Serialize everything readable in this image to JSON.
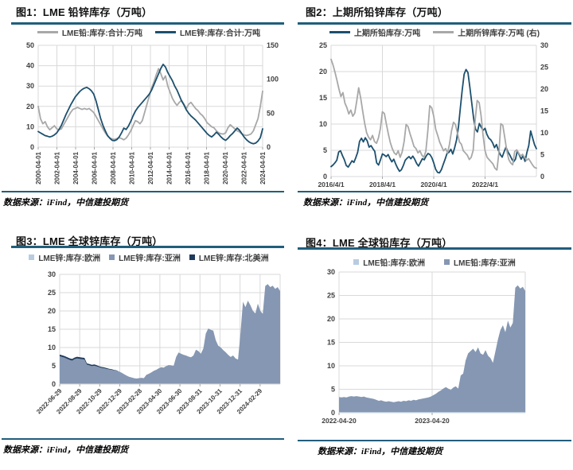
{
  "accent_color": "#215e7c",
  "source_note": "数据来源：iFind，中信建投期货",
  "chart_data": [
    {
      "id": "fig1",
      "title": "图1：LME 铅锌库存（万吨）",
      "type": "line",
      "source": "数据来源：iFind，中信建投期货",
      "left_axis": {
        "min": 0,
        "max": 50,
        "ticks": [
          0,
          10,
          20,
          30,
          40,
          50
        ]
      },
      "right_axis": {
        "min": 0,
        "max": 150,
        "ticks": [
          0,
          50,
          100,
          150
        ]
      },
      "x_ticks": [
        "2000-04-01",
        "2002-04-01",
        "2004-04-01",
        "2006-04-01",
        "2008-04-01",
        "2010-04-01",
        "2012-04-01",
        "2014-04-01",
        "2016-04-01",
        "2018-04-01",
        "2020-04-01",
        "2022-04-01",
        "2024-04-01"
      ],
      "grid": true,
      "legend_position": "top",
      "series": [
        {
          "name": "LME铅:库存:合计:万吨",
          "axis": "left",
          "color": "#a8a8a8",
          "values": [
            20,
            14,
            11.5,
            12.5,
            10,
            8.5,
            9.5,
            10.5,
            9,
            8.5,
            9,
            11,
            13,
            15,
            17,
            18.5,
            19,
            19.5,
            19,
            18.5,
            19,
            18.5,
            19,
            18,
            17,
            15,
            13,
            11,
            9,
            7,
            5.5,
            4.5,
            4,
            3.8,
            4.2,
            4.6,
            4.2,
            3.6,
            4.4,
            6,
            8,
            10.5,
            13,
            12.5,
            11.5,
            13,
            17,
            21,
            25,
            29,
            32,
            35.5,
            38.5,
            36,
            33,
            35,
            30,
            27,
            24,
            22,
            20.5,
            22,
            23,
            21,
            19,
            21,
            22,
            20.5,
            19,
            18,
            16.5,
            15.5,
            14,
            12,
            11,
            10,
            9.5,
            8,
            7,
            6.6,
            6.4,
            7,
            9.5,
            11,
            10,
            9,
            8,
            7.5,
            6.5,
            6,
            5.7,
            6,
            6.5,
            8,
            11,
            14,
            20,
            27.5
          ]
        },
        {
          "name": "LME锌:库存:合计:万吨",
          "axis": "right",
          "color": "#1c506e",
          "values": [
            23,
            21,
            19,
            17,
            16,
            15,
            16,
            18,
            21,
            26,
            32,
            40,
            48,
            55,
            62,
            68,
            74,
            78,
            82,
            85,
            87,
            88,
            86,
            83,
            78,
            68,
            55,
            42,
            32,
            24,
            17,
            13,
            10,
            9.5,
            11,
            15,
            21,
            28,
            26,
            31,
            38,
            46,
            53,
            58,
            62,
            66,
            70,
            74,
            78,
            84,
            92,
            100,
            108,
            116,
            122,
            118,
            110,
            104,
            98,
            90,
            84,
            76,
            68,
            62,
            55,
            50,
            46,
            43,
            40,
            36,
            32,
            28,
            24,
            20,
            17,
            15,
            18,
            22,
            19,
            15,
            12,
            10,
            13,
            17,
            20,
            24,
            28,
            25,
            20,
            15,
            11,
            8,
            6,
            5,
            6,
            9,
            14,
            27
          ]
        }
      ]
    },
    {
      "id": "fig2",
      "title": "图2：上期所铅锌库存（万吨）",
      "type": "line",
      "source": "数据来源：iFind，中信建投期货",
      "left_axis": {
        "min": 0,
        "max": 25,
        "ticks": [
          0,
          5,
          10,
          15,
          20,
          25
        ]
      },
      "right_axis": {
        "min": 0,
        "max": 30,
        "ticks": [
          0,
          5,
          10,
          15,
          20,
          25,
          30
        ]
      },
      "x_ticks": [
        "2016/4/1",
        "2018/4/1",
        "2020/4/1",
        "2022/4/1"
      ],
      "grid": true,
      "legend_position": "top",
      "series": [
        {
          "name": "上期所铅库存:万吨",
          "axis": "left",
          "color": "#1c506e",
          "values": [
            1.9,
            2.2,
            2.6,
            3.1,
            4.7,
            4.9,
            4.0,
            3.2,
            2.1,
            1.8,
            2.4,
            3.0,
            2.7,
            3.6,
            4.6,
            6.7,
            7.3,
            6.6,
            7.4,
            6.8,
            5.6,
            5.9,
            5.3,
            4.8,
            2.6,
            2.2,
            3.2,
            4.3,
            4.1,
            3.8,
            4.2,
            3.4,
            2.8,
            3.3,
            2.4,
            1.6,
            1.0,
            1.3,
            2.1,
            3.1,
            3.5,
            3.8,
            3.4,
            3.9,
            3.3,
            2.5,
            2.0,
            2.7,
            3.4,
            3.2,
            3.9,
            4.4,
            4.2,
            3.6,
            2.6,
            1.4,
            0.8,
            0.7,
            1.3,
            2.3,
            3.3,
            4.4,
            4.6,
            5.2,
            4.3,
            5.5,
            7.0,
            9.5,
            13.0,
            16.5,
            19.5,
            20.4,
            19.8,
            17.0,
            14.0,
            11.0,
            9.0,
            8.5,
            10.1,
            9.4,
            8.8,
            9.2,
            8.0,
            7.3,
            7.0,
            6.4,
            5.5,
            6.1,
            5.0,
            4.2,
            3.7,
            4.7,
            5.6,
            4.7,
            4.1,
            3.4,
            2.8,
            3.3,
            4.9,
            4.1,
            3.3,
            4.0,
            2.9,
            4.6,
            5.9,
            8.7,
            7.4,
            6.1,
            5.3
          ]
        },
        {
          "name": "上期所锌库存:万吨 (右)",
          "axis": "right",
          "color": "#a8a8a8",
          "values": [
            26.8,
            25.5,
            23.8,
            22.0,
            20.0,
            18.3,
            19.2,
            16.8,
            15.8,
            14.3,
            15.2,
            13.8,
            14.5,
            17.3,
            20.3,
            18.0,
            15.0,
            12.2,
            10.0,
            9.0,
            8.4,
            9.4,
            8.0,
            7.6,
            8.8,
            11.0,
            14.8,
            14.4,
            12.0,
            9.8,
            7.8,
            6.4,
            5.4,
            5.0,
            5.9,
            4.4,
            5.6,
            8.0,
            11.9,
            11.4,
            9.8,
            8.4,
            6.9,
            6.4,
            5.4,
            5.9,
            4.9,
            4.4,
            5.8,
            10.5,
            16.2,
            15.7,
            13.8,
            10.8,
            9.4,
            7.9,
            6.9,
            5.9,
            6.4,
            5.4,
            7.4,
            10.4,
            12.4,
            11.9,
            9.9,
            7.9,
            7.4,
            5.9,
            5.4,
            4.9,
            3.9,
            4.4,
            6.0,
            13.0,
            17.4,
            16.9,
            13.9,
            9.4,
            5.9,
            4.4,
            3.9,
            3.4,
            2.9,
            1.9,
            1.5,
            5.4,
            12.1,
            11.7,
            8.9,
            5.9,
            3.9,
            3.1,
            2.7,
            5.7,
            6.1,
            5.4,
            4.7,
            5.1,
            4.4,
            3.7,
            4.1,
            3.4,
            2.7,
            2.1,
            1.9
          ]
        }
      ]
    },
    {
      "id": "fig3",
      "title": "图3：LME 全球锌库存（万吨）",
      "type": "area",
      "source": "数据来源：iFind，中信建投期货",
      "left_axis": {
        "min": 0,
        "max": 30,
        "ticks": [
          0,
          5,
          10,
          15,
          20,
          25,
          30
        ]
      },
      "x_ticks": [
        "2022-06-29",
        "2022-08-29",
        "2022-10-29",
        "2022-12-29",
        "2023-02-28",
        "2023-04-30",
        "2023-06-30",
        "2023-08-31",
        "2023-10-31",
        "2023-12-31",
        "2024-02-29"
      ],
      "grid": true,
      "legend_position": "top",
      "series": [
        {
          "name": "LME锌:库存:欧洲",
          "color": "#b8cce0",
          "values": [
            0.12,
            0.12,
            0.12,
            0.12,
            0.12,
            0.12,
            0.12,
            0.12,
            0.12,
            0.12,
            0.12,
            0.12,
            0.12,
            0.12,
            0.12,
            0.12,
            0.12,
            0.12,
            0.12,
            0.12,
            0.12,
            0.12,
            0.12,
            0.12,
            0.12,
            0.12,
            0.12,
            0.12,
            0.12,
            0.12,
            0.12,
            0.12,
            0.12,
            0.12,
            0.12,
            0.12,
            0.12,
            0.12,
            0.12,
            0.12,
            0.12,
            0.12,
            0.12,
            0.12,
            0.12,
            0.12,
            0.12,
            0.12,
            0.12,
            0.12,
            0.12,
            0.12,
            0.12,
            0.12,
            0.12,
            0.12,
            0.12,
            0.12,
            0.12,
            0.12,
            0.12,
            0.12,
            0.12,
            0.12,
            0.12,
            0.12,
            0.12,
            0.12,
            0.12,
            0.12,
            0.12,
            0.12,
            0.12,
            0.12,
            0.12,
            0.12,
            0.12,
            0.12,
            0.12,
            0.12,
            0.12,
            0.12,
            0.12,
            0.12,
            0.12,
            0.12,
            0.12,
            0.12,
            0.12,
            0.12
          ]
        },
        {
          "name": "LME锌:库存:亚洲",
          "color": "#8597b2",
          "values": [
            7.5,
            7.3,
            7.1,
            6.8,
            6.5,
            6.3,
            6.7,
            6.9,
            6.8,
            6.7,
            6.6,
            5.2,
            5.0,
            4.8,
            4.9,
            4.7,
            4.5,
            4.3,
            4.2,
            4.0,
            3.9,
            3.8,
            3.6,
            3.5,
            3.3,
            3.0,
            2.6,
            2.2,
            1.9,
            1.7,
            1.5,
            1.4,
            1.5,
            1.6,
            1.5,
            2.4,
            2.7,
            3.1,
            3.5,
            3.8,
            4.2,
            4.5,
            4.4,
            4.8,
            5.1,
            5.0,
            4.9,
            7.3,
            8.5,
            8.2,
            7.9,
            7.7,
            7.4,
            7.2,
            7.7,
            9.3,
            8.9,
            8.2,
            9.6,
            13.7,
            15.1,
            14.7,
            14.5,
            11.9,
            10.4,
            9.9,
            9.2,
            8.6,
            7.9,
            7.3,
            7.7,
            6.9,
            6.6,
            13.9,
            22.4,
            20.9,
            22.7,
            21.4,
            19.9,
            19.2,
            21.9,
            19.9,
            19.1,
            26.7,
            27.2,
            26.4,
            26.8,
            25.9,
            26.4,
            25.3
          ]
        },
        {
          "name": "LME锌:库存:北美洲",
          "color": "#1f3b5d",
          "values": [
            0.45,
            0.45,
            0.45,
            0.45,
            0.45,
            0.45,
            0.45,
            0.45,
            0.45,
            0.45,
            0.45,
            0.35,
            0.35,
            0.35,
            0.35,
            0.35,
            0.25,
            0.25,
            0.25,
            0.25,
            0.15,
            0.15,
            0.15,
            0.15,
            0,
            0,
            0,
            0,
            0,
            0,
            0,
            0,
            0,
            0,
            0,
            0,
            0,
            0,
            0,
            0,
            0,
            0,
            0,
            0,
            0,
            0,
            0,
            0,
            0,
            0,
            0,
            0,
            0,
            0,
            0,
            0,
            0,
            0,
            0,
            0,
            0,
            0,
            0,
            0,
            0,
            0,
            0,
            0,
            0,
            0,
            0,
            0,
            0,
            0,
            0,
            0,
            0,
            0,
            0,
            0,
            0,
            0,
            0,
            0,
            0,
            0,
            0,
            0,
            0,
            0
          ]
        }
      ]
    },
    {
      "id": "fig4",
      "title": "图4：LME 全球铅库存（万吨）",
      "type": "area",
      "source": "数据来源：iFind，中信建投期货",
      "left_axis": {
        "min": 0,
        "max": 30,
        "ticks": [
          0,
          5,
          10,
          15,
          20,
          25,
          30
        ]
      },
      "x_ticks": [
        "2022-04-20",
        "2023-04-20"
      ],
      "grid": true,
      "legend_position": "top",
      "series": [
        {
          "name": "LME铅:库存:欧洲",
          "color": "#b8cce0",
          "values": [
            0.15,
            0.15,
            0.15,
            0.15,
            0.15,
            0.15,
            0.15,
            0.15,
            0.15,
            0.15,
            0.15,
            0.15,
            0.15,
            0.15,
            0.15,
            0.15,
            0.15,
            0.15,
            0.15,
            0.15,
            0.15,
            0.15,
            0.15,
            0.15,
            0.15,
            0.15,
            0.15,
            0.15,
            0.15,
            0.15,
            0.15,
            0.15,
            0.15,
            0.15,
            0.15,
            0.15,
            0.15,
            0.15,
            0.15,
            0.15,
            0.15,
            0.15,
            0.15,
            0.15,
            0.15,
            0.15,
            0.15,
            0.15,
            0.15,
            0.15,
            0.15,
            0.15,
            0.15,
            0.15,
            0.15,
            0.15,
            0.15,
            0.15,
            0.15,
            0.15,
            0.15,
            0.15,
            0.15,
            0.15,
            0.15,
            0.15,
            0.15,
            0.15,
            0.15,
            0.15,
            0.15,
            0.15,
            0.15,
            0.15,
            0.15,
            0.15
          ]
        },
        {
          "name": "LME铅:库存:亚洲",
          "color": "#8597b2",
          "values": [
            3.2,
            3.1,
            3.2,
            3.1,
            3.3,
            3.4,
            3.3,
            3.4,
            3.3,
            3.2,
            3.3,
            3.1,
            3.0,
            2.9,
            2.8,
            2.6,
            2.4,
            2.5,
            2.3,
            2.2,
            2.3,
            2.2,
            2.1,
            2.2,
            2.3,
            2.2,
            2.4,
            2.3,
            2.5,
            2.4,
            2.6,
            2.5,
            2.7,
            2.8,
            2.9,
            3.0,
            3.1,
            3.3,
            3.6,
            3.9,
            4.3,
            4.6,
            5.0,
            5.3,
            5.0,
            4.7,
            5.2,
            5.5,
            5.0,
            7.8,
            8.2,
            11.0,
            12.5,
            13.0,
            13.5,
            12.8,
            13.8,
            12.5,
            12.2,
            13.2,
            12.0,
            11.5,
            10.5,
            13.0,
            15.5,
            17.5,
            18.5,
            17.0,
            19.5,
            18.0,
            19.0,
            26.5,
            27.0,
            26.3,
            26.7,
            25.8
          ]
        }
      ]
    }
  ]
}
